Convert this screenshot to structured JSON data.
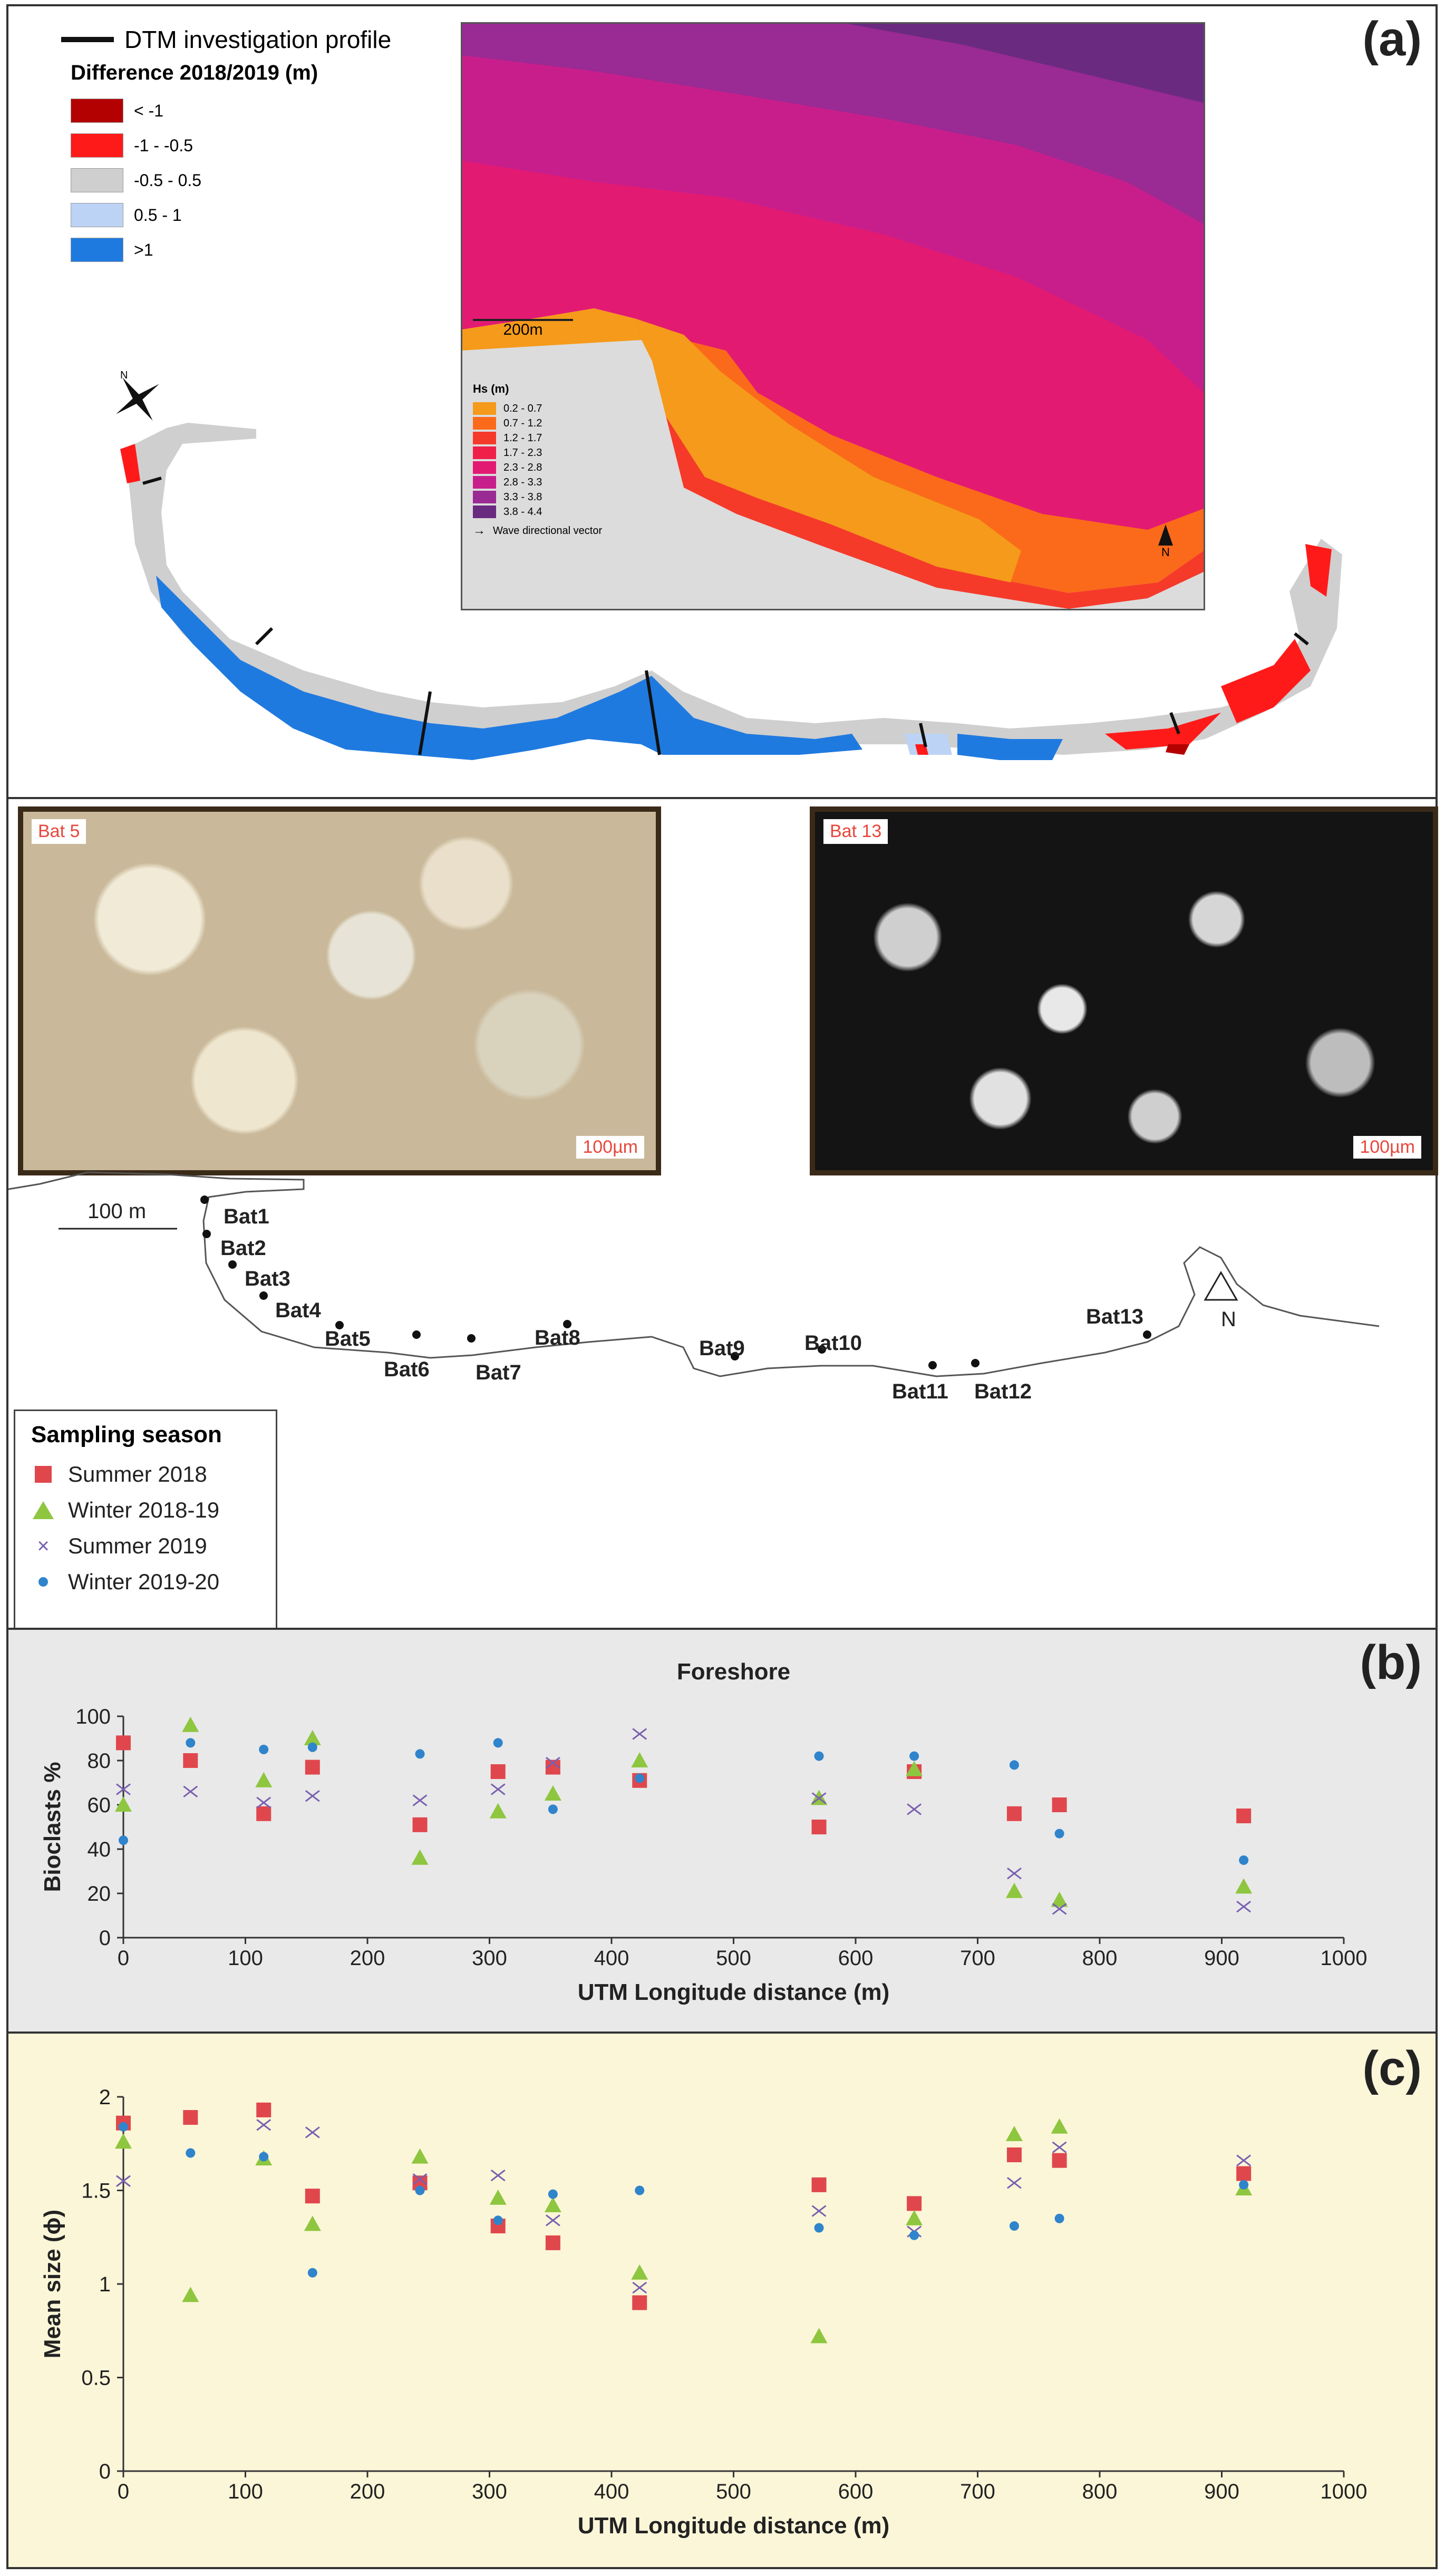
{
  "panel_a": {
    "letter": "(a)",
    "profile_label": "DTM investigation profile",
    "legend_title": "Difference 2018/2019 (m)",
    "legend": [
      {
        "label": "< -1",
        "color": "#b30000"
      },
      {
        "label": "-1 - -0.5",
        "color": "#ff1a1a"
      },
      {
        "label": "-0.5 - 0.5",
        "color": "#cfcfcf"
      },
      {
        "label": "0.5 - 1",
        "color": "#bcd3f5"
      },
      {
        "label": ">1",
        "color": "#1f7ae0"
      }
    ],
    "inset": {
      "scale": "200m",
      "hs_title": "Hs (m)",
      "hs_classes": [
        {
          "label": "0.2 - 0.7",
          "color": "#f59a1a"
        },
        {
          "label": "0.7 - 1.2",
          "color": "#fb6a1a"
        },
        {
          "label": "1.2 - 1.7",
          "color": "#f53a2a"
        },
        {
          "label": "1.7 - 2.3",
          "color": "#ef1f4a"
        },
        {
          "label": "2.3 - 2.8",
          "color": "#e31a72"
        },
        {
          "label": "2.8 - 3.3",
          "color": "#c81e8c"
        },
        {
          "label": "3.3 - 3.8",
          "color": "#9a2a94"
        },
        {
          "label": "3.8 - 4.4",
          "color": "#6a2a80"
        }
      ],
      "vector_label": "Wave directional vector",
      "north": "N"
    },
    "north": "N"
  },
  "photos": [
    {
      "label": "Bat 5",
      "scale": "100µm"
    },
    {
      "label": "Bat 13",
      "scale": "100µm"
    }
  ],
  "site_map": {
    "scale": "100 m",
    "north": "N",
    "sites": [
      "Bat1",
      "Bat2",
      "Bat3",
      "Bat4",
      "Bat5",
      "Bat6",
      "Bat7",
      "Bat8",
      "Bat9",
      "Bat10",
      "Bat11",
      "Bat12",
      "Bat13"
    ]
  },
  "sampling_legend": {
    "title": "Sampling season",
    "items": [
      {
        "label": "Summer 2018",
        "marker": "square",
        "color": "#e0474c"
      },
      {
        "label": "Winter 2018-19",
        "marker": "triangle",
        "color": "#8ec63f"
      },
      {
        "label": "Summer 2019",
        "marker": "x",
        "color": "#7a5fb0"
      },
      {
        "label": "Winter 2019-20",
        "marker": "circle",
        "color": "#2f84cc"
      }
    ]
  },
  "chart_data": [
    {
      "panel": "(b)",
      "type": "scatter",
      "title": "Foreshore",
      "xlabel": "UTM Longitude distance (m)",
      "ylabel": "Bioclasts %",
      "xlim": [
        0,
        1000
      ],
      "ylim": [
        0,
        100
      ],
      "xticks": [
        0,
        100,
        200,
        300,
        400,
        500,
        600,
        700,
        800,
        900,
        1000
      ],
      "yticks": [
        0,
        20,
        40,
        60,
        80,
        100
      ],
      "series": [
        {
          "name": "Summer 2018",
          "x": [
            0,
            55,
            115,
            155,
            243,
            307,
            352,
            423,
            570,
            648,
            730,
            767,
            918
          ],
          "y": [
            88,
            80,
            56,
            77,
            51,
            75,
            77,
            71,
            50,
            75,
            56,
            60,
            55
          ]
        },
        {
          "name": "Winter 2018-19",
          "x": [
            0,
            55,
            115,
            155,
            243,
            307,
            352,
            423,
            570,
            648,
            730,
            767,
            918
          ],
          "y": [
            60,
            96,
            71,
            90,
            36,
            57,
            65,
            80,
            63,
            76,
            21,
            17,
            23
          ]
        },
        {
          "name": "Summer 2019",
          "x": [
            0,
            55,
            115,
            155,
            243,
            307,
            352,
            423,
            570,
            648,
            730,
            767,
            918
          ],
          "y": [
            67,
            66,
            61,
            64,
            62,
            67,
            79,
            92,
            63,
            58,
            29,
            13,
            14
          ]
        },
        {
          "name": "Winter 2019-20",
          "x": [
            0,
            55,
            115,
            155,
            243,
            307,
            352,
            423,
            570,
            648,
            730,
            767,
            918
          ],
          "y": [
            44,
            88,
            85,
            86,
            83,
            88,
            58,
            72,
            82,
            82,
            78,
            47,
            35
          ]
        }
      ]
    },
    {
      "panel": "(c)",
      "type": "scatter",
      "title": "",
      "xlabel": "UTM Longitude distance (m)",
      "ylabel": "Mean size (ϕ)",
      "xlim": [
        0,
        1000
      ],
      "ylim": [
        0,
        2
      ],
      "xticks": [
        0,
        100,
        200,
        300,
        400,
        500,
        600,
        700,
        800,
        900,
        1000
      ],
      "yticks": [
        0,
        0.5,
        1,
        1.5,
        2
      ],
      "series": [
        {
          "name": "Summer 2018",
          "x": [
            0,
            55,
            115,
            155,
            243,
            307,
            352,
            423,
            570,
            648,
            730,
            767,
            918
          ],
          "y": [
            1.86,
            1.89,
            1.93,
            1.47,
            1.54,
            1.31,
            1.22,
            0.9,
            1.53,
            1.43,
            1.69,
            1.66,
            1.59
          ]
        },
        {
          "name": "Winter 2018-19",
          "x": [
            0,
            55,
            115,
            155,
            243,
            307,
            352,
            423,
            570,
            648,
            730,
            767,
            918
          ],
          "y": [
            1.76,
            0.94,
            1.67,
            1.32,
            1.68,
            1.46,
            1.42,
            1.06,
            0.72,
            1.35,
            1.8,
            1.84,
            1.51
          ]
        },
        {
          "name": "Summer 2019",
          "x": [
            0,
            55,
            115,
            155,
            243,
            307,
            352,
            423,
            570,
            648,
            730,
            767,
            918
          ],
          "y": [
            1.55,
            null,
            1.85,
            1.81,
            1.56,
            1.58,
            1.34,
            0.98,
            1.39,
            1.28,
            1.54,
            1.73,
            1.66
          ]
        },
        {
          "name": "Winter 2019-20",
          "x": [
            0,
            55,
            115,
            155,
            243,
            307,
            352,
            423,
            570,
            648,
            730,
            767,
            918
          ],
          "y": [
            1.84,
            1.7,
            1.68,
            1.06,
            1.5,
            1.34,
            1.48,
            1.5,
            1.3,
            1.26,
            1.31,
            1.35,
            1.53
          ]
        }
      ]
    }
  ]
}
